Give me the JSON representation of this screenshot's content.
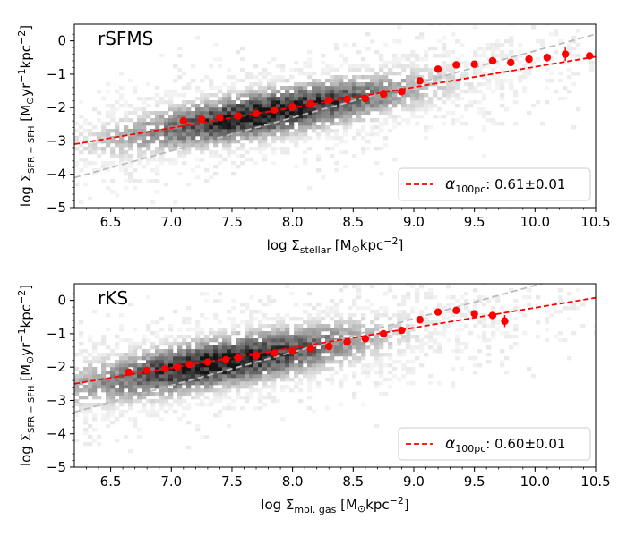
{
  "chart_data": [
    {
      "type": "scatter",
      "panel_label": "rSFMS",
      "xlabel": {
        "base": "log Σ",
        "sub": "stellar",
        "units_pre": " [M",
        "units_sun": "⊙",
        "units_post": "kpc",
        "sup": "−2",
        "close": "]"
      },
      "ylabel": {
        "base": "log Σ",
        "sub": "SFR − SFH",
        "units_pre": " [M",
        "units_sun": "⊙",
        "units_mid": "yr",
        "sup1": "−1",
        "units_post": "kpc",
        "sup2": "−2",
        "close": "]"
      },
      "xlim": [
        6.2,
        10.5
      ],
      "ylim": [
        -5,
        0.5
      ],
      "xticks": [
        "6.5",
        "7.0",
        "7.5",
        "8.0",
        "8.5",
        "9.0",
        "9.5",
        "10.0",
        "10.5"
      ],
      "yticks": [
        "0",
        "−1",
        "−2",
        "−3",
        "−4",
        "−5"
      ],
      "ytick_values": [
        0,
        -1,
        -2,
        -3,
        -4,
        -5
      ],
      "xtick_values": [
        6.5,
        7.0,
        7.5,
        8.0,
        8.5,
        9.0,
        9.5,
        10.0,
        10.5
      ],
      "density": {
        "center_x": 7.8,
        "center_y": -2.2,
        "slope": 0.61,
        "spread_x": 0.75,
        "spread_y": 0.38
      },
      "binned_medians": {
        "x": [
          7.1,
          7.25,
          7.4,
          7.55,
          7.7,
          7.85,
          8.0,
          8.15,
          8.3,
          8.45,
          8.6,
          8.75,
          8.9,
          9.05,
          9.2,
          9.35,
          9.5,
          9.65,
          9.8,
          9.95,
          10.1,
          10.25,
          10.45
        ],
        "y": [
          -2.4,
          -2.35,
          -2.3,
          -2.25,
          -2.18,
          -2.07,
          -1.98,
          -1.88,
          -1.78,
          -1.75,
          -1.73,
          -1.6,
          -1.52,
          -1.2,
          -0.85,
          -0.72,
          -0.7,
          -0.6,
          -0.65,
          -0.55,
          -0.5,
          -0.4,
          -0.45
        ],
        "err": [
          0.05,
          0.05,
          0.05,
          0.05,
          0.05,
          0.05,
          0.05,
          0.05,
          0.05,
          0.05,
          0.05,
          0.05,
          0.05,
          0.08,
          0.08,
          0.08,
          0.08,
          0.08,
          0.1,
          0.1,
          0.12,
          0.2,
          0.1
        ]
      },
      "fit": {
        "slope": 0.61,
        "intercept": -6.88,
        "color": "#ff0000"
      },
      "one_to_one": {
        "slope": 1.0,
        "intercept": -10.3,
        "color": "#bbbbbb"
      },
      "legend": {
        "alpha": "α",
        "sub": "100pc",
        "text": ":  0.61±0.01"
      }
    },
    {
      "type": "scatter",
      "panel_label": "rKS",
      "xlabel": {
        "base": "log Σ",
        "sub": "mol. gas",
        "units_pre": " [M",
        "units_sun": "⊙",
        "units_post": "kpc",
        "sup": "−2",
        "close": "]"
      },
      "ylabel": {
        "base": "log Σ",
        "sub": "SFR − SFH",
        "units_pre": " [M",
        "units_sun": "⊙",
        "units_mid": "yr",
        "sup1": "−1",
        "units_post": "kpc",
        "sup2": "−2",
        "close": "]"
      },
      "xlim": [
        6.2,
        10.5
      ],
      "ylim": [
        -5,
        0.5
      ],
      "xticks": [
        "6.5",
        "7.0",
        "7.5",
        "8.0",
        "8.5",
        "9.0",
        "9.5",
        "10.0",
        "10.5"
      ],
      "yticks": [
        "0",
        "−1",
        "−2",
        "−3",
        "−4",
        "−5"
      ],
      "ytick_values": [
        0,
        -1,
        -2,
        -3,
        -4,
        -5
      ],
      "xtick_values": [
        6.5,
        7.0,
        7.5,
        8.0,
        8.5,
        9.0,
        9.5,
        10.0,
        10.5
      ],
      "density": {
        "center_x": 7.4,
        "center_y": -1.9,
        "slope": 0.6,
        "spread_x": 0.75,
        "spread_y": 0.4
      },
      "binned_medians": {
        "x": [
          6.65,
          6.8,
          6.95,
          7.05,
          7.15,
          7.3,
          7.45,
          7.55,
          7.7,
          7.85,
          8.0,
          8.15,
          8.3,
          8.45,
          8.6,
          8.75,
          8.9,
          9.05,
          9.2,
          9.35,
          9.5,
          9.65,
          9.75
        ],
        "y": [
          -2.15,
          -2.1,
          -2.05,
          -2.0,
          -1.92,
          -1.85,
          -1.78,
          -1.72,
          -1.65,
          -1.58,
          -1.52,
          -1.45,
          -1.38,
          -1.25,
          -1.15,
          -1.0,
          -0.9,
          -0.58,
          -0.35,
          -0.3,
          -0.4,
          -0.45,
          -0.62
        ],
        "err": [
          0.05,
          0.05,
          0.05,
          0.05,
          0.05,
          0.05,
          0.05,
          0.05,
          0.05,
          0.05,
          0.05,
          0.05,
          0.05,
          0.05,
          0.05,
          0.05,
          0.05,
          0.08,
          0.08,
          0.08,
          0.1,
          0.1,
          0.18
        ]
      },
      "fit": {
        "slope": 0.6,
        "intercept": -6.22,
        "color": "#ff0000"
      },
      "one_to_one": {
        "slope": 1.0,
        "intercept": -9.55,
        "color": "#bbbbbb"
      },
      "legend": {
        "alpha": "α",
        "sub": "100pc",
        "text": ":  0.60±0.01"
      }
    }
  ]
}
